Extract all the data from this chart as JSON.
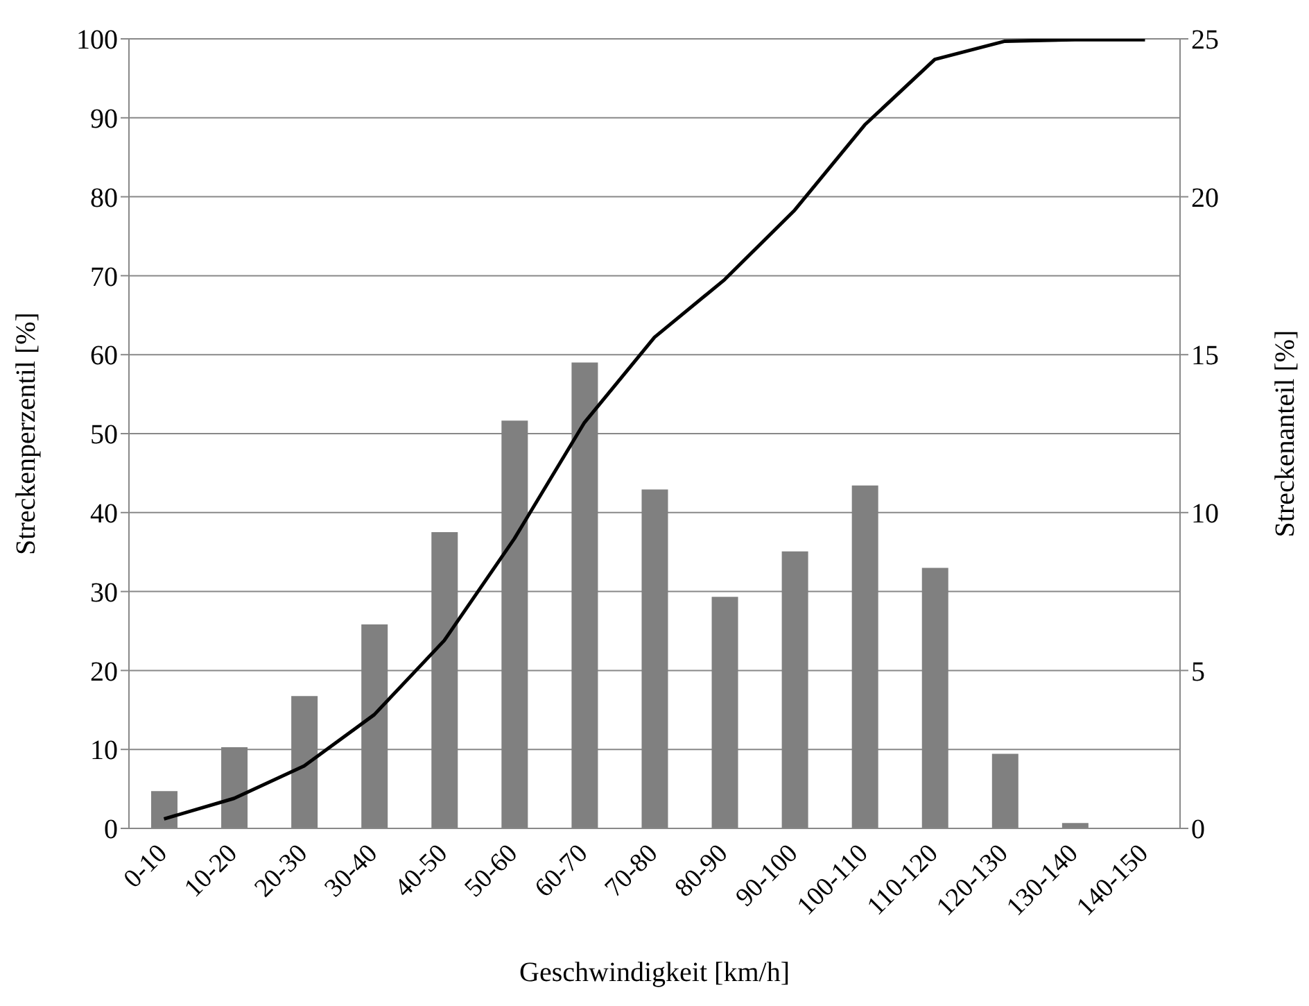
{
  "chart_data": {
    "type": "bar",
    "xlabel": "Geschwindigkeit [km/h]",
    "ylabel": "Streckenperzentil [%]",
    "y2label": "Streckenanteil [%]",
    "categories": [
      "0-10",
      "10-20",
      "20-30",
      "30-40",
      "40-50",
      "50-60",
      "60-70",
      "70-80",
      "80-90",
      "90-100",
      "100-110",
      "110-120",
      "120-130",
      "130-140",
      "140-150"
    ],
    "series": [
      {
        "axis": "y2",
        "color": "#808080",
        "values": [
          1.18,
          2.57,
          4.19,
          6.46,
          9.38,
          12.91,
          14.75,
          10.73,
          7.33,
          8.77,
          10.86,
          8.25,
          2.36,
          0.17,
          0.02
        ]
      },
      {
        "type": "line",
        "color": "#000000",
        "values": [
          1.2,
          3.8,
          7.9,
          14.4,
          23.8,
          36.7,
          51.4,
          62.2,
          69.5,
          78.3,
          89.1,
          97.4,
          99.7,
          99.9,
          99.9
        ]
      }
    ],
    "ylim": [
      0,
      100
    ],
    "yticks": [
      0,
      10,
      20,
      30,
      40,
      50,
      60,
      70,
      80,
      90,
      100
    ],
    "y2lim": [
      0,
      25
    ],
    "y2ticks": [
      0,
      5,
      10,
      15,
      20,
      25
    ],
    "grid": "y",
    "legend": false,
    "marker": "none"
  }
}
